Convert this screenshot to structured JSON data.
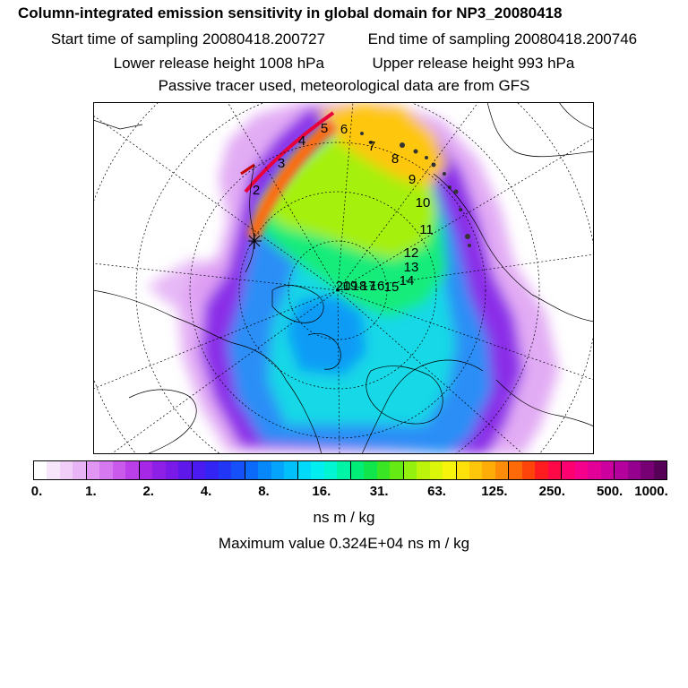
{
  "header": {
    "title": "Column-integrated emission sensitivity in global domain for NP3_20080418",
    "start_label": "Start time of sampling 20080418.200727",
    "end_label": "End time of sampling 20080418.200746",
    "lower_label": "Lower release height 1008 hPa",
    "upper_label": "Upper release height  993 hPa",
    "tracer_label": "Passive tracer used, meteorological data are from GFS"
  },
  "map": {
    "track_labels": [
      "2",
      "3",
      "4",
      "5",
      "6",
      "7",
      "8",
      "9",
      "10",
      "11",
      "12",
      "13",
      "14",
      "15",
      "16",
      "17",
      "18",
      "19",
      "20"
    ]
  },
  "colorbar": {
    "colors": [
      "#ffffff",
      "#f7e6fb",
      "#f0cef8",
      "#e9b4f5",
      "#e096f2",
      "#d678ef",
      "#c95aec",
      "#bb3fe9",
      "#a727e6",
      "#8d1fe6",
      "#7a1ae8",
      "#5e18ea",
      "#4a1af0",
      "#3424f4",
      "#2236f6",
      "#1650f8",
      "#0c6afa",
      "#0688fb",
      "#04a4fc",
      "#00c0fc",
      "#00dafa",
      "#00eef0",
      "#00f6d2",
      "#00f4a6",
      "#00ee78",
      "#10e64c",
      "#3ae624",
      "#66ea14",
      "#94f00e",
      "#bcf40c",
      "#dcf60a",
      "#f6f40a",
      "#fee00a",
      "#fec60a",
      "#feac08",
      "#fe8c08",
      "#fe6a08",
      "#fe440a",
      "#fe1c20",
      "#fe0848",
      "#fe0070",
      "#f4008c",
      "#e20098",
      "#cc009e",
      "#b4009c",
      "#96008e",
      "#760074",
      "#560058"
    ],
    "ticks": [
      "0.",
      "1.",
      "2.",
      "4.",
      "8.",
      "16.",
      "31.",
      "63.",
      "125.",
      "250.",
      "500.",
      "1000."
    ],
    "units": "ns m / kg"
  },
  "footer": {
    "max_label": "Maximum value  0.324E+04 ns m / kg"
  }
}
